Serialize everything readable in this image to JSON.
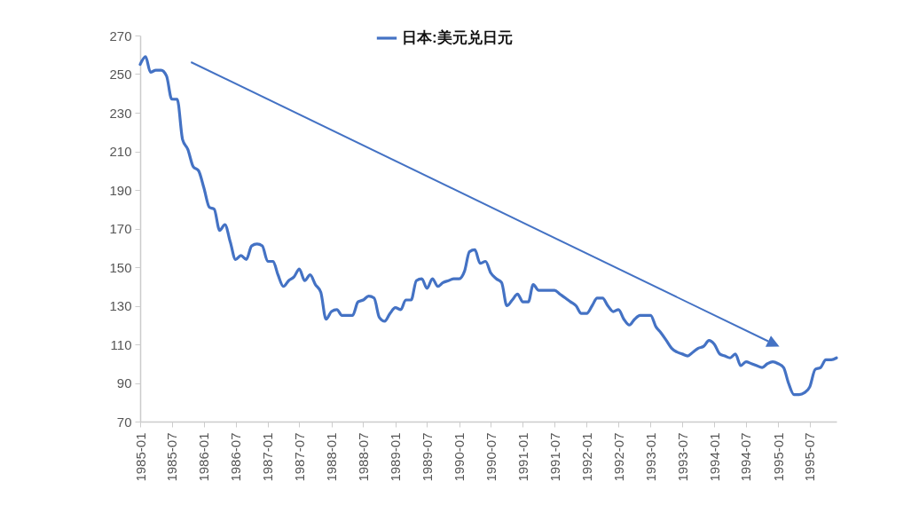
{
  "chart_data": {
    "type": "line",
    "x": [
      "1985-01",
      "1985-02",
      "1985-03",
      "1985-04",
      "1985-05",
      "1985-06",
      "1985-07",
      "1985-08",
      "1985-09",
      "1985-10",
      "1985-11",
      "1985-12",
      "1986-01",
      "1986-02",
      "1986-03",
      "1986-04",
      "1986-05",
      "1986-06",
      "1986-07",
      "1986-08",
      "1986-09",
      "1986-10",
      "1986-11",
      "1986-12",
      "1987-01",
      "1987-02",
      "1987-03",
      "1987-04",
      "1987-05",
      "1987-06",
      "1987-07",
      "1987-08",
      "1987-09",
      "1987-10",
      "1987-11",
      "1987-12",
      "1988-01",
      "1988-02",
      "1988-03",
      "1988-04",
      "1988-05",
      "1988-06",
      "1988-07",
      "1988-08",
      "1988-09",
      "1988-10",
      "1988-11",
      "1988-12",
      "1989-01",
      "1989-02",
      "1989-03",
      "1989-04",
      "1989-05",
      "1989-06",
      "1989-07",
      "1989-08",
      "1989-09",
      "1989-10",
      "1989-11",
      "1989-12",
      "1990-01",
      "1990-02",
      "1990-03",
      "1990-04",
      "1990-05",
      "1990-06",
      "1990-07",
      "1990-08",
      "1990-09",
      "1990-10",
      "1990-11",
      "1990-12",
      "1991-01",
      "1991-02",
      "1991-03",
      "1991-04",
      "1991-05",
      "1991-06",
      "1991-07",
      "1991-08",
      "1991-09",
      "1991-10",
      "1991-11",
      "1991-12",
      "1992-01",
      "1992-02",
      "1992-03",
      "1992-04",
      "1992-05",
      "1992-06",
      "1992-07",
      "1992-08",
      "1992-09",
      "1992-10",
      "1992-11",
      "1992-12",
      "1993-01",
      "1993-02",
      "1993-03",
      "1993-04",
      "1993-05",
      "1993-06",
      "1993-07",
      "1993-08",
      "1993-09",
      "1993-10",
      "1993-11",
      "1993-12",
      "1994-01",
      "1994-02",
      "1994-03",
      "1994-04",
      "1994-05",
      "1994-06",
      "1994-07",
      "1994-08",
      "1994-09",
      "1994-10",
      "1994-11",
      "1994-12",
      "1995-01",
      "1995-02",
      "1995-03",
      "1995-04",
      "1995-05",
      "1995-06",
      "1995-07",
      "1995-08",
      "1995-09",
      "1995-10",
      "1995-11",
      "1995-12"
    ],
    "series": [
      {
        "name": "日本:美元兑日元",
        "color": "#4472c4",
        "values": [
          255,
          259,
          251,
          252,
          252,
          249,
          237,
          237,
          216,
          211,
          202,
          200,
          191,
          181,
          180,
          169,
          172,
          163,
          154,
          156,
          154,
          161,
          162,
          161,
          153,
          153,
          146,
          140,
          143,
          145,
          149,
          143,
          146,
          141,
          137,
          123,
          127,
          128,
          125,
          125,
          125,
          132,
          133,
          135,
          134,
          124,
          122,
          126,
          129,
          128,
          133,
          133,
          143,
          144,
          139,
          144,
          140,
          142,
          143,
          144,
          144,
          148,
          158,
          159,
          152,
          153,
          147,
          144,
          142,
          130,
          133,
          136,
          132,
          132,
          141,
          138,
          138,
          138,
          138,
          136,
          134,
          132,
          130,
          126,
          126,
          130,
          134,
          134,
          130,
          127,
          128,
          123,
          120,
          123,
          125,
          125,
          125,
          119,
          116,
          112,
          108,
          106,
          105,
          104,
          106,
          108,
          109,
          112,
          110,
          105,
          104,
          103,
          105,
          99,
          101,
          100,
          99,
          98,
          100,
          101,
          100,
          98,
          90,
          84,
          84,
          85,
          88,
          97,
          98,
          102,
          102,
          103
        ]
      }
    ],
    "xlim": [
      "1985-01",
      "1995-12"
    ],
    "xticks": [
      "1985-01",
      "1985-07",
      "1986-01",
      "1986-07",
      "1987-01",
      "1987-07",
      "1988-01",
      "1988-07",
      "1989-01",
      "1989-07",
      "1990-01",
      "1990-07",
      "1991-01",
      "1991-07",
      "1992-01",
      "1992-07",
      "1993-01",
      "1993-07",
      "1994-01",
      "1994-07",
      "1995-01",
      "1995-07"
    ],
    "ylim": [
      70,
      270
    ],
    "yticks": [
      70,
      90,
      110,
      130,
      150,
      170,
      190,
      210,
      230,
      250,
      270
    ],
    "legend": "top",
    "line_style": "solid"
  }
}
